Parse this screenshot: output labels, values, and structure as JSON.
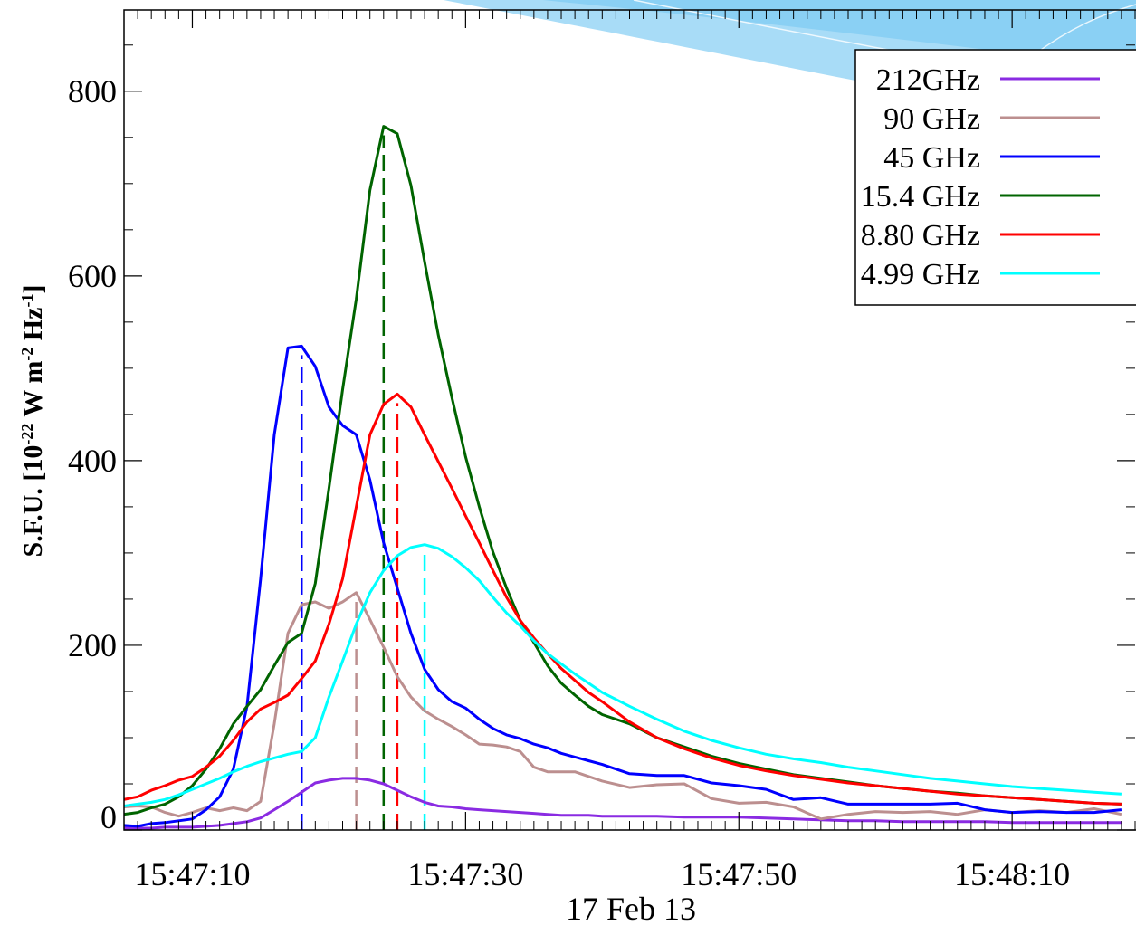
{
  "chart_data": {
    "type": "line",
    "x_label": "17 Feb 13",
    "y_label": [
      "S.F.U. [10",
      "-22",
      " W m",
      "-2",
      " Hz",
      "-1",
      "]"
    ],
    "xlim": [
      "15:47:05",
      "15:48:19"
    ],
    "xticks": [
      "15:47:10",
      "15:47:30",
      "15:47:50",
      "15:48:10"
    ],
    "ylim": [
      0,
      888
    ],
    "yticks": [
      0,
      200,
      400,
      600,
      800
    ],
    "legend": "upper right",
    "x": [
      "15:47:05",
      "15:47:06",
      "15:47:07",
      "15:47:08",
      "15:47:09",
      "15:47:10",
      "15:47:11",
      "15:47:12",
      "15:47:13",
      "15:47:14",
      "15:47:15",
      "15:47:16",
      "15:47:17",
      "15:47:18",
      "15:47:19",
      "15:47:20",
      "15:47:21",
      "15:47:22",
      "15:47:23",
      "15:47:24",
      "15:47:25",
      "15:47:26",
      "15:47:27",
      "15:47:28",
      "15:47:29",
      "15:47:30",
      "15:47:31",
      "15:47:32",
      "15:47:33",
      "15:47:34",
      "15:47:35",
      "15:47:36",
      "15:47:37",
      "15:47:38",
      "15:47:39",
      "15:47:40",
      "15:47:42",
      "15:47:44",
      "15:47:46",
      "15:47:48",
      "15:47:50",
      "15:47:52",
      "15:47:54",
      "15:47:56",
      "15:47:58",
      "15:48:00",
      "15:48:02",
      "15:48:04",
      "15:48:06",
      "15:48:08",
      "15:48:10",
      "15:48:12",
      "15:48:14",
      "15:48:16",
      "15:48:18"
    ],
    "series": [
      {
        "name": "212GHz",
        "color": "#8a2be2",
        "values": [
          2,
          2,
          2,
          3,
          3,
          3,
          4,
          5,
          7,
          9,
          13,
          22,
          31,
          41,
          51,
          54,
          56,
          56,
          54,
          50,
          43,
          36,
          30,
          26,
          25,
          23,
          22,
          21,
          20,
          19,
          18,
          17,
          16,
          16,
          16,
          15,
          15,
          15,
          14,
          14,
          14,
          13,
          12,
          11,
          10,
          10,
          9,
          9,
          9,
          9,
          8,
          8,
          8,
          8,
          8
        ]
      },
      {
        "name": "90 GHz",
        "color": "#bc8f8f",
        "peak": "15:47:22",
        "values": [
          25,
          26,
          25,
          19,
          15,
          19,
          24,
          21,
          24,
          21,
          31,
          115,
          213,
          244,
          247,
          240,
          247,
          257,
          228,
          198,
          166,
          144,
          129,
          120,
          112,
          103,
          93,
          92,
          90,
          85,
          68,
          63,
          63,
          63,
          58,
          53,
          46,
          49,
          50,
          34,
          29,
          30,
          25,
          12,
          17,
          20,
          19,
          20,
          17,
          22,
          19,
          21,
          19,
          23,
          17
        ]
      },
      {
        "name": "45 GHz",
        "color": "#0000ff",
        "peak": "15:47:18",
        "values": [
          5,
          4,
          7,
          8,
          10,
          12,
          22,
          36,
          66,
          134,
          272,
          428,
          522,
          524,
          502,
          458,
          438,
          428,
          379,
          311,
          262,
          213,
          174,
          152,
          139,
          132,
          120,
          110,
          103,
          99,
          93,
          89,
          83,
          79,
          75,
          71,
          61,
          59,
          59,
          51,
          48,
          44,
          33,
          35,
          28,
          28,
          28,
          28,
          29,
          22,
          19,
          20,
          19,
          19,
          22
        ]
      },
      {
        "name": "15.4 GHz",
        "color": "#006400",
        "peak": "15:47:24",
        "values": [
          17,
          19,
          24,
          28,
          36,
          48,
          66,
          88,
          115,
          134,
          152,
          178,
          203,
          213,
          267,
          370,
          477,
          575,
          693,
          762,
          754,
          698,
          615,
          536,
          468,
          404,
          350,
          301,
          262,
          227,
          203,
          178,
          159,
          146,
          134,
          125,
          115,
          100,
          90,
          80,
          72,
          66,
          60,
          56,
          52,
          48,
          45,
          42,
          40,
          37,
          35,
          33,
          31,
          29,
          28
        ]
      },
      {
        "name": "8.80 GHz",
        "color": "#ff0000",
        "peak": "15:47:25",
        "values": [
          33,
          36,
          43,
          48,
          54,
          58,
          68,
          80,
          97,
          117,
          131,
          138,
          146,
          164,
          183,
          223,
          272,
          350,
          428,
          461,
          472,
          458,
          428,
          399,
          370,
          340,
          311,
          281,
          252,
          227,
          208,
          191,
          175,
          162,
          149,
          139,
          117,
          100,
          88,
          78,
          70,
          64,
          59,
          55,
          51,
          48,
          45,
          42,
          39,
          37,
          35,
          33,
          31,
          29,
          28
        ]
      },
      {
        "name": "4.99 GHz",
        "color": "#00ffff",
        "peak": "15:47:27",
        "values": [
          26,
          28,
          30,
          33,
          38,
          44,
          50,
          56,
          63,
          69,
          74,
          78,
          82,
          85,
          100,
          144,
          183,
          223,
          257,
          281,
          297,
          306,
          309,
          305,
          296,
          284,
          270,
          252,
          235,
          221,
          205,
          191,
          180,
          169,
          159,
          149,
          134,
          120,
          107,
          97,
          89,
          82,
          77,
          73,
          68,
          64,
          60,
          56,
          53,
          50,
          47,
          45,
          43,
          41,
          39
        ]
      }
    ]
  }
}
